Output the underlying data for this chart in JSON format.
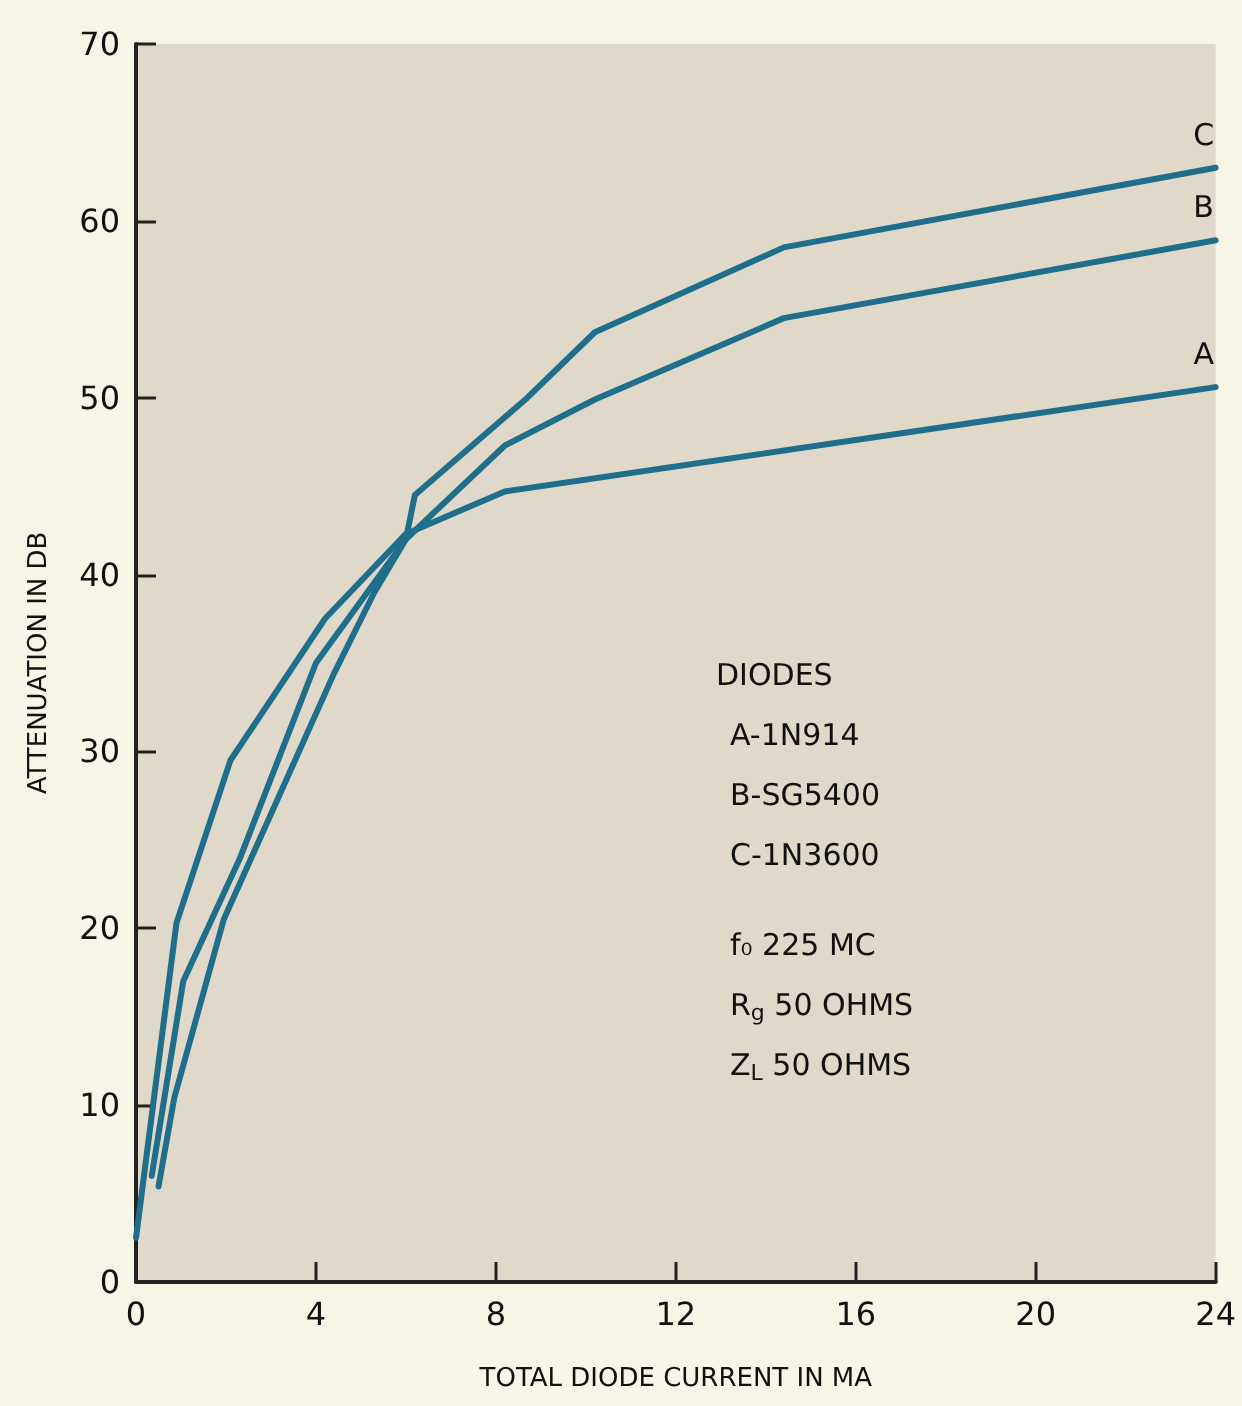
{
  "chart_data": {
    "type": "line",
    "xlabel": "TOTAL DIODE CURRENT IN MA",
    "ylabel": "ATTENUATION IN DB",
    "xlim": [
      0,
      24
    ],
    "xticks": [
      0,
      4,
      8,
      12,
      16,
      20,
      24
    ],
    "ylim": [
      0,
      70
    ],
    "yticks": [
      0,
      10,
      20,
      30,
      40,
      50,
      60,
      70
    ],
    "grid": false,
    "legend": false,
    "marker": "none",
    "line_style": "solid",
    "series": [
      {
        "name": "A",
        "color": "#1f6e8c",
        "x": [
          0,
          0.9,
          2.1,
          4.2,
          6,
          8.2,
          24
        ],
        "values": [
          2.5,
          20.3,
          29.5,
          37.5,
          42.3,
          44.7,
          50.6
        ]
      },
      {
        "name": "B",
        "color": "#1f6e8c",
        "x": [
          0.35,
          1.05,
          2.3,
          4,
          6,
          8.2,
          10.2,
          14.4,
          24
        ],
        "values": [
          6,
          17,
          23.9,
          35,
          42,
          47.3,
          49.9,
          54.5,
          58.9
        ]
      },
      {
        "name": "C",
        "color": "#1f6e8c",
        "x": [
          0.5,
          0.85,
          1.95,
          4.4,
          5.3,
          6,
          6.2,
          8.7,
          10.2,
          14.4,
          24
        ],
        "values": [
          5.4,
          10.4,
          20.5,
          34.4,
          39,
          42,
          44.5,
          50,
          53.7,
          58.5,
          63
        ]
      }
    ],
    "annotations": [
      "DIODES",
      "A-1N914",
      "B-SG5400",
      "C-1N3600",
      "f₀ 225 MC",
      "R$_{g}$ 50 OHMS",
      "Z$_{L}$ 50 OHMS"
    ]
  }
}
